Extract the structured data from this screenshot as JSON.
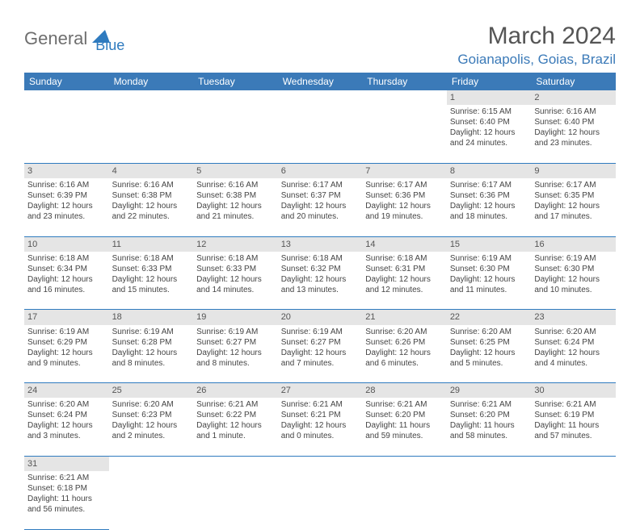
{
  "brand": {
    "word1": "General",
    "word2": "Blue"
  },
  "header": {
    "month": "March 2024",
    "location": "Goianapolis, Goias, Brazil"
  },
  "colors": {
    "header_bg": "#3b7ab8",
    "rule": "#2f7bbf",
    "daynum_bg": "#e5e5e5",
    "text": "#444444"
  },
  "dayNames": [
    "Sunday",
    "Monday",
    "Tuesday",
    "Wednesday",
    "Thursday",
    "Friday",
    "Saturday"
  ],
  "weeks": [
    [
      null,
      null,
      null,
      null,
      null,
      {
        "n": "1",
        "sr": "Sunrise: 6:15 AM",
        "ss": "Sunset: 6:40 PM",
        "d1": "Daylight: 12 hours",
        "d2": "and 24 minutes."
      },
      {
        "n": "2",
        "sr": "Sunrise: 6:16 AM",
        "ss": "Sunset: 6:40 PM",
        "d1": "Daylight: 12 hours",
        "d2": "and 23 minutes."
      }
    ],
    [
      {
        "n": "3",
        "sr": "Sunrise: 6:16 AM",
        "ss": "Sunset: 6:39 PM",
        "d1": "Daylight: 12 hours",
        "d2": "and 23 minutes."
      },
      {
        "n": "4",
        "sr": "Sunrise: 6:16 AM",
        "ss": "Sunset: 6:38 PM",
        "d1": "Daylight: 12 hours",
        "d2": "and 22 minutes."
      },
      {
        "n": "5",
        "sr": "Sunrise: 6:16 AM",
        "ss": "Sunset: 6:38 PM",
        "d1": "Daylight: 12 hours",
        "d2": "and 21 minutes."
      },
      {
        "n": "6",
        "sr": "Sunrise: 6:17 AM",
        "ss": "Sunset: 6:37 PM",
        "d1": "Daylight: 12 hours",
        "d2": "and 20 minutes."
      },
      {
        "n": "7",
        "sr": "Sunrise: 6:17 AM",
        "ss": "Sunset: 6:36 PM",
        "d1": "Daylight: 12 hours",
        "d2": "and 19 minutes."
      },
      {
        "n": "8",
        "sr": "Sunrise: 6:17 AM",
        "ss": "Sunset: 6:36 PM",
        "d1": "Daylight: 12 hours",
        "d2": "and 18 minutes."
      },
      {
        "n": "9",
        "sr": "Sunrise: 6:17 AM",
        "ss": "Sunset: 6:35 PM",
        "d1": "Daylight: 12 hours",
        "d2": "and 17 minutes."
      }
    ],
    [
      {
        "n": "10",
        "sr": "Sunrise: 6:18 AM",
        "ss": "Sunset: 6:34 PM",
        "d1": "Daylight: 12 hours",
        "d2": "and 16 minutes."
      },
      {
        "n": "11",
        "sr": "Sunrise: 6:18 AM",
        "ss": "Sunset: 6:33 PM",
        "d1": "Daylight: 12 hours",
        "d2": "and 15 minutes."
      },
      {
        "n": "12",
        "sr": "Sunrise: 6:18 AM",
        "ss": "Sunset: 6:33 PM",
        "d1": "Daylight: 12 hours",
        "d2": "and 14 minutes."
      },
      {
        "n": "13",
        "sr": "Sunrise: 6:18 AM",
        "ss": "Sunset: 6:32 PM",
        "d1": "Daylight: 12 hours",
        "d2": "and 13 minutes."
      },
      {
        "n": "14",
        "sr": "Sunrise: 6:18 AM",
        "ss": "Sunset: 6:31 PM",
        "d1": "Daylight: 12 hours",
        "d2": "and 12 minutes."
      },
      {
        "n": "15",
        "sr": "Sunrise: 6:19 AM",
        "ss": "Sunset: 6:30 PM",
        "d1": "Daylight: 12 hours",
        "d2": "and 11 minutes."
      },
      {
        "n": "16",
        "sr": "Sunrise: 6:19 AM",
        "ss": "Sunset: 6:30 PM",
        "d1": "Daylight: 12 hours",
        "d2": "and 10 minutes."
      }
    ],
    [
      {
        "n": "17",
        "sr": "Sunrise: 6:19 AM",
        "ss": "Sunset: 6:29 PM",
        "d1": "Daylight: 12 hours",
        "d2": "and 9 minutes."
      },
      {
        "n": "18",
        "sr": "Sunrise: 6:19 AM",
        "ss": "Sunset: 6:28 PM",
        "d1": "Daylight: 12 hours",
        "d2": "and 8 minutes."
      },
      {
        "n": "19",
        "sr": "Sunrise: 6:19 AM",
        "ss": "Sunset: 6:27 PM",
        "d1": "Daylight: 12 hours",
        "d2": "and 8 minutes."
      },
      {
        "n": "20",
        "sr": "Sunrise: 6:19 AM",
        "ss": "Sunset: 6:27 PM",
        "d1": "Daylight: 12 hours",
        "d2": "and 7 minutes."
      },
      {
        "n": "21",
        "sr": "Sunrise: 6:20 AM",
        "ss": "Sunset: 6:26 PM",
        "d1": "Daylight: 12 hours",
        "d2": "and 6 minutes."
      },
      {
        "n": "22",
        "sr": "Sunrise: 6:20 AM",
        "ss": "Sunset: 6:25 PM",
        "d1": "Daylight: 12 hours",
        "d2": "and 5 minutes."
      },
      {
        "n": "23",
        "sr": "Sunrise: 6:20 AM",
        "ss": "Sunset: 6:24 PM",
        "d1": "Daylight: 12 hours",
        "d2": "and 4 minutes."
      }
    ],
    [
      {
        "n": "24",
        "sr": "Sunrise: 6:20 AM",
        "ss": "Sunset: 6:24 PM",
        "d1": "Daylight: 12 hours",
        "d2": "and 3 minutes."
      },
      {
        "n": "25",
        "sr": "Sunrise: 6:20 AM",
        "ss": "Sunset: 6:23 PM",
        "d1": "Daylight: 12 hours",
        "d2": "and 2 minutes."
      },
      {
        "n": "26",
        "sr": "Sunrise: 6:21 AM",
        "ss": "Sunset: 6:22 PM",
        "d1": "Daylight: 12 hours",
        "d2": "and 1 minute."
      },
      {
        "n": "27",
        "sr": "Sunrise: 6:21 AM",
        "ss": "Sunset: 6:21 PM",
        "d1": "Daylight: 12 hours",
        "d2": "and 0 minutes."
      },
      {
        "n": "28",
        "sr": "Sunrise: 6:21 AM",
        "ss": "Sunset: 6:20 PM",
        "d1": "Daylight: 11 hours",
        "d2": "and 59 minutes."
      },
      {
        "n": "29",
        "sr": "Sunrise: 6:21 AM",
        "ss": "Sunset: 6:20 PM",
        "d1": "Daylight: 11 hours",
        "d2": "and 58 minutes."
      },
      {
        "n": "30",
        "sr": "Sunrise: 6:21 AM",
        "ss": "Sunset: 6:19 PM",
        "d1": "Daylight: 11 hours",
        "d2": "and 57 minutes."
      }
    ],
    [
      {
        "n": "31",
        "sr": "Sunrise: 6:21 AM",
        "ss": "Sunset: 6:18 PM",
        "d1": "Daylight: 11 hours",
        "d2": "and 56 minutes."
      },
      null,
      null,
      null,
      null,
      null,
      null
    ]
  ]
}
